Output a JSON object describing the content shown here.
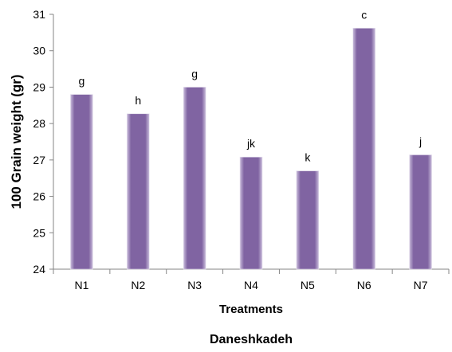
{
  "chart_data": {
    "type": "bar",
    "categories": [
      "N1",
      "N2",
      "N3",
      "N4",
      "N5",
      "N6",
      "N7"
    ],
    "values": [
      28.8,
      28.27,
      29.0,
      27.08,
      26.7,
      30.62,
      27.14
    ],
    "bar_labels": [
      "g",
      "h",
      "g",
      "jk",
      "k",
      "c",
      "j"
    ],
    "ylim": [
      24,
      31
    ],
    "yticks": [
      24,
      25,
      26,
      27,
      28,
      29,
      30,
      31
    ],
    "xlabel": "Treatments",
    "ylabel": "100 Grain weight (gr)",
    "subtitle": "Daneshkadeh",
    "grid": false,
    "bar_color": "#8064a2",
    "bar_highlight": "#b3a2c7"
  }
}
